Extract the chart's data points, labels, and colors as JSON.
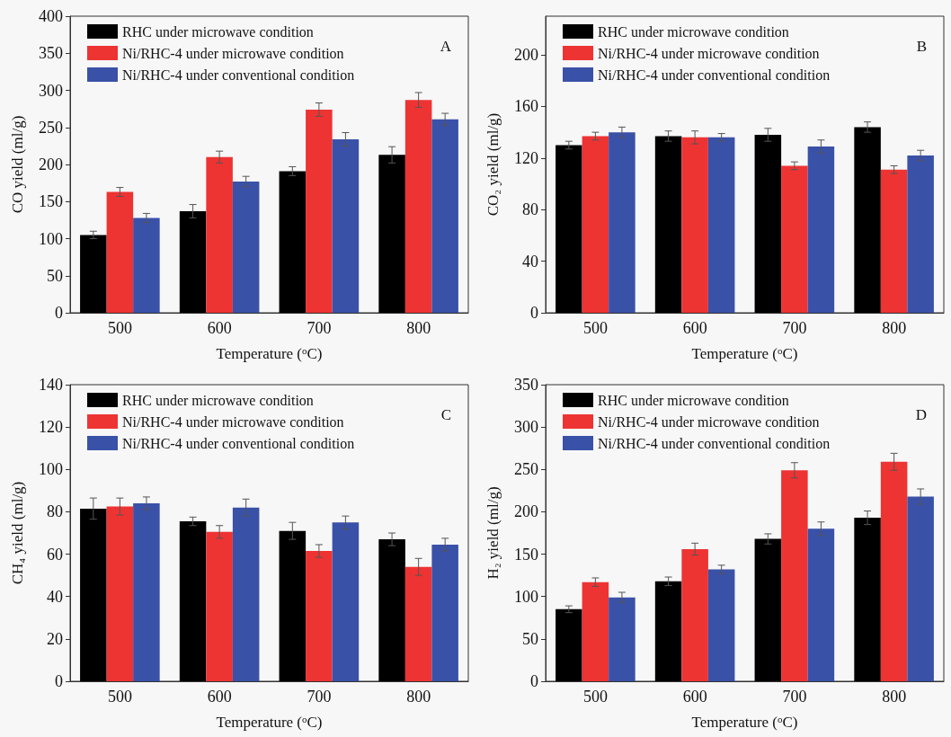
{
  "chart_data": [
    {
      "type": "bar",
      "title": "A",
      "xlabel": "Temperature ($^{o}$C)",
      "ylabel": "CO yield (ml/g)",
      "categories": [
        "500",
        "600",
        "700",
        "800"
      ],
      "ylim": [
        0,
        400
      ],
      "yticks": [
        0,
        50,
        100,
        150,
        200,
        250,
        300,
        350,
        400
      ],
      "legend": "top left",
      "grid": false,
      "series": [
        {
          "name": "RHC under microwave condition",
          "color": "#000000",
          "values": [
            105,
            137,
            191,
            213
          ],
          "errors": [
            5,
            9,
            6,
            11
          ]
        },
        {
          "name": "Ni/RHC-4 under microwave condition",
          "color": "#ee3333",
          "values": [
            163,
            210,
            274,
            287
          ],
          "errors": [
            6,
            8,
            9,
            10
          ]
        },
        {
          "name": "Ni/RHC-4 under conventional condition",
          "color": "#3a51a8",
          "values": [
            128,
            177,
            234,
            261
          ],
          "errors": [
            6,
            7,
            9,
            8
          ]
        }
      ]
    },
    {
      "type": "bar",
      "title": "B",
      "xlabel": "Temperature ($^{o}$C)",
      "ylabel": "CO₂ yield (ml/g)",
      "categories": [
        "500",
        "600",
        "700",
        "800"
      ],
      "ylim": [
        0,
        230
      ],
      "yticks": [
        0,
        40,
        80,
        120,
        160,
        200
      ],
      "legend": "top left",
      "grid": false,
      "series": [
        {
          "name": "RHC under microwave condition",
          "color": "#000000",
          "values": [
            130,
            137,
            138,
            144
          ],
          "errors": [
            3,
            4,
            5,
            4
          ]
        },
        {
          "name": "Ni/RHC-4 under microwave condition",
          "color": "#ee3333",
          "values": [
            137,
            136,
            114,
            111
          ],
          "errors": [
            3,
            5,
            3,
            3
          ]
        },
        {
          "name": "Ni/RHC-4 under conventional condition",
          "color": "#3a51a8",
          "values": [
            140,
            136,
            129,
            122
          ],
          "errors": [
            4,
            3,
            5,
            4
          ]
        }
      ]
    },
    {
      "type": "bar",
      "title": "C",
      "xlabel": "Temperature ($^{o}$C)",
      "ylabel": "CH₄ yield (ml/g)",
      "categories": [
        "500",
        "600",
        "700",
        "800"
      ],
      "ylim": [
        0,
        140
      ],
      "yticks": [
        0,
        20,
        40,
        60,
        80,
        100,
        120,
        140
      ],
      "legend": "top left",
      "grid": false,
      "series": [
        {
          "name": "RHC under microwave condition",
          "color": "#000000",
          "values": [
            81.5,
            75.5,
            71,
            67
          ],
          "errors": [
            5,
            2,
            4,
            3
          ]
        },
        {
          "name": "Ni/RHC-4 under microwave condition",
          "color": "#ee3333",
          "values": [
            82.5,
            70.5,
            61.5,
            54
          ],
          "errors": [
            4,
            3,
            3,
            4
          ]
        },
        {
          "name": "Ni/RHC-4 under conventional condition",
          "color": "#3a51a8",
          "values": [
            84,
            82,
            75,
            64.5
          ],
          "errors": [
            3,
            4,
            3,
            3
          ]
        }
      ]
    },
    {
      "type": "bar",
      "title": "D",
      "xlabel": "Temperature ($^{o}$C)",
      "ylabel": "H₂ yield (ml/g)",
      "categories": [
        "500",
        "600",
        "700",
        "800"
      ],
      "ylim": [
        0,
        350
      ],
      "yticks": [
        0,
        50,
        100,
        150,
        200,
        250,
        300,
        350
      ],
      "legend": "top left",
      "grid": false,
      "series": [
        {
          "name": "RHC under microwave condition",
          "color": "#000000",
          "values": [
            85,
            118,
            168,
            193
          ],
          "errors": [
            4,
            5,
            6,
            8
          ]
        },
        {
          "name": "Ni/RHC-4 under microwave condition",
          "color": "#ee3333",
          "values": [
            117,
            156,
            249,
            259
          ],
          "errors": [
            5,
            7,
            9,
            10
          ]
        },
        {
          "name": "Ni/RHC-4 under conventional condition",
          "color": "#3a51a8",
          "values": [
            99,
            132,
            180,
            218
          ],
          "errors": [
            6,
            5,
            8,
            9
          ]
        }
      ]
    }
  ]
}
